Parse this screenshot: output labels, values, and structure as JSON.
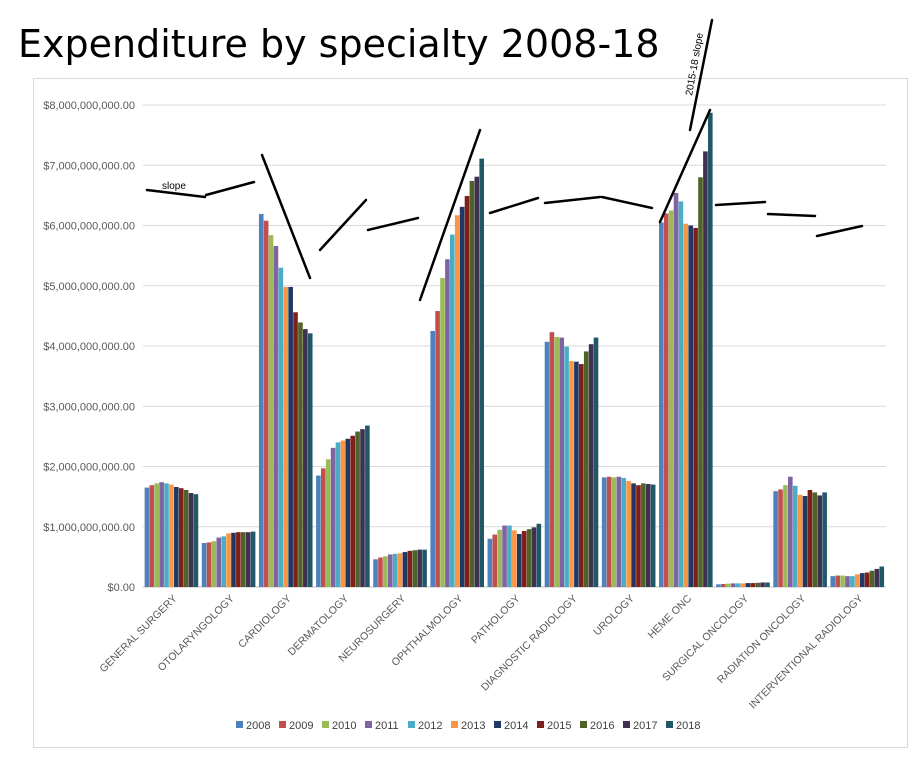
{
  "title": "Expenditure by specialty 2008-18",
  "annotations": {
    "slope": "slope",
    "slope_2015_18": "2015-18 slope"
  },
  "colors": {
    "2008": "#4f81bd",
    "2009": "#c0504d",
    "2010": "#9bbb59",
    "2011": "#8064a2",
    "2012": "#4bacc6",
    "2013": "#f79646",
    "2014": "#1f3864",
    "2015": "#7f1f1a",
    "2016": "#4f6228",
    "2017": "#3f3151",
    "2018": "#215868"
  },
  "chart_data": {
    "type": "bar",
    "title": "Expenditure by specialty 2008-18",
    "xlabel": "",
    "ylabel": "",
    "ylim": [
      0,
      8000000000
    ],
    "yticks": [
      {
        "value": 0,
        "label": "$0.00"
      },
      {
        "value": 1000000000,
        "label": "$1,000,000,000.00"
      },
      {
        "value": 2000000000,
        "label": "$2,000,000,000.00"
      },
      {
        "value": 3000000000,
        "label": "$3,000,000,000.00"
      },
      {
        "value": 4000000000,
        "label": "$4,000,000,000.00"
      },
      {
        "value": 5000000000,
        "label": "$5,000,000,000.00"
      },
      {
        "value": 6000000000,
        "label": "$6,000,000,000.00"
      },
      {
        "value": 7000000000,
        "label": "$7,000,000,000.00"
      },
      {
        "value": 8000000000,
        "label": "$8,000,000,000.00"
      }
    ],
    "grid": true,
    "legend": "bottom",
    "categories": [
      "GENERAL SURGERY",
      "OTOLARYNGOLOGY",
      "CARDIOLOGY",
      "DERMATOLOGY",
      "NEUROSURGERY",
      "OPHTHALMOLOGY",
      "PATHOLOGY",
      "DIAGNOSTIC RADIOLOGY",
      "UROLOGY",
      "HEME ONC",
      "SURGICAL ONCOLOGY",
      "RADIATION ONCOLOGY",
      "INTERVENTIONAL RADIOLOGY"
    ],
    "series": [
      {
        "name": "2008",
        "values": [
          1650000000,
          730000000,
          6190000000,
          1850000000,
          460000000,
          4250000000,
          800000000,
          4070000000,
          1820000000,
          6050000000,
          45000000,
          1590000000,
          180000000
        ]
      },
      {
        "name": "2009",
        "values": [
          1690000000,
          740000000,
          6080000000,
          1970000000,
          490000000,
          4580000000,
          870000000,
          4230000000,
          1830000000,
          6200000000,
          50000000,
          1620000000,
          190000000
        ]
      },
      {
        "name": "2010",
        "values": [
          1720000000,
          760000000,
          5840000000,
          2120000000,
          510000000,
          5130000000,
          950000000,
          4150000000,
          1820000000,
          6250000000,
          55000000,
          1690000000,
          190000000
        ]
      },
      {
        "name": "2011",
        "values": [
          1740000000,
          820000000,
          5660000000,
          2310000000,
          540000000,
          5440000000,
          1020000000,
          4140000000,
          1830000000,
          6540000000,
          60000000,
          1830000000,
          180000000
        ]
      },
      {
        "name": "2012",
        "values": [
          1720000000,
          840000000,
          5300000000,
          2400000000,
          550000000,
          5850000000,
          1020000000,
          3990000000,
          1810000000,
          6400000000,
          60000000,
          1680000000,
          180000000
        ]
      },
      {
        "name": "2013",
        "values": [
          1700000000,
          890000000,
          4980000000,
          2430000000,
          560000000,
          6170000000,
          940000000,
          3750000000,
          1760000000,
          6030000000,
          60000000,
          1530000000,
          210000000
        ]
      },
      {
        "name": "2014",
        "values": [
          1660000000,
          900000000,
          4980000000,
          2460000000,
          580000000,
          6310000000,
          880000000,
          3740000000,
          1720000000,
          6000000000,
          65000000,
          1510000000,
          230000000
        ]
      },
      {
        "name": "2015",
        "values": [
          1640000000,
          910000000,
          4560000000,
          2510000000,
          600000000,
          6490000000,
          930000000,
          3700000000,
          1690000000,
          5960000000,
          65000000,
          1610000000,
          240000000
        ]
      },
      {
        "name": "2016",
        "values": [
          1610000000,
          910000000,
          4390000000,
          2580000000,
          610000000,
          6740000000,
          960000000,
          3910000000,
          1720000000,
          6800000000,
          70000000,
          1570000000,
          270000000
        ]
      },
      {
        "name": "2017",
        "values": [
          1560000000,
          910000000,
          4280000000,
          2620000000,
          620000000,
          6810000000,
          990000000,
          4030000000,
          1710000000,
          7230000000,
          75000000,
          1520000000,
          300000000
        ]
      },
      {
        "name": "2018",
        "values": [
          1540000000,
          920000000,
          4210000000,
          2680000000,
          620000000,
          7110000000,
          1050000000,
          4140000000,
          1700000000,
          7870000000,
          75000000,
          1570000000,
          340000000
        ]
      }
    ]
  }
}
